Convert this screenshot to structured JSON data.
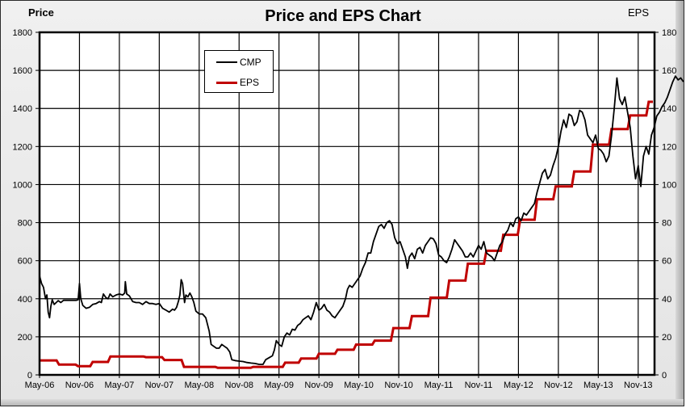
{
  "chart_data": {
    "type": "line",
    "title": "Price and EPS Chart",
    "xlabel": "",
    "ylabel": "Price",
    "y2label": "EPS",
    "ylim": [
      0,
      1800
    ],
    "y2lim": [
      0,
      180
    ],
    "yticks": [
      0,
      200,
      400,
      600,
      800,
      1000,
      1200,
      1400,
      1600,
      1800
    ],
    "y2ticks": [
      0,
      20,
      40,
      60,
      80,
      100,
      120,
      140,
      160,
      180
    ],
    "categories": [
      "May-06",
      "Nov-06",
      "May-07",
      "Nov-07",
      "May-08",
      "Nov-08",
      "May-09",
      "Nov-09",
      "May-10",
      "Nov-10",
      "May-11",
      "Nov-11",
      "May-12",
      "Nov-12",
      "May-13",
      "Nov-13"
    ],
    "grid": true,
    "legend_position": "upper-left-inside",
    "x_unit": "months since May-06",
    "series": [
      {
        "name": "CMP",
        "axis": "left",
        "color": "#000000",
        "points": [
          [
            0,
            520
          ],
          [
            0.3,
            480
          ],
          [
            0.6,
            460
          ],
          [
            0.9,
            400
          ],
          [
            1.1,
            420
          ],
          [
            1.3,
            330
          ],
          [
            1.5,
            300
          ],
          [
            1.7,
            360
          ],
          [
            1.9,
            395
          ],
          [
            2.2,
            370
          ],
          [
            2.5,
            380
          ],
          [
            2.8,
            390
          ],
          [
            3.2,
            380
          ],
          [
            3.6,
            392
          ],
          [
            4.0,
            392
          ],
          [
            4.5,
            392
          ],
          [
            5.0,
            392
          ],
          [
            5.5,
            392
          ],
          [
            5.8,
            395
          ],
          [
            6.0,
            480
          ],
          [
            6.2,
            400
          ],
          [
            6.5,
            365
          ],
          [
            7.0,
            350
          ],
          [
            7.5,
            355
          ],
          [
            8.0,
            370
          ],
          [
            8.5,
            375
          ],
          [
            9.0,
            385
          ],
          [
            9.3,
            380
          ],
          [
            9.6,
            425
          ],
          [
            10.0,
            405
          ],
          [
            10.3,
            400
          ],
          [
            10.6,
            425
          ],
          [
            11.0,
            410
          ],
          [
            11.5,
            420
          ],
          [
            12.0,
            425
          ],
          [
            12.5,
            420
          ],
          [
            12.8,
            430
          ],
          [
            12.9,
            490
          ],
          [
            13.1,
            425
          ],
          [
            13.5,
            415
          ],
          [
            14.0,
            385
          ],
          [
            14.5,
            380
          ],
          [
            15.0,
            380
          ],
          [
            15.5,
            370
          ],
          [
            16.0,
            385
          ],
          [
            16.5,
            375
          ],
          [
            17.0,
            375
          ],
          [
            17.5,
            370
          ],
          [
            18.0,
            375
          ],
          [
            18.5,
            350
          ],
          [
            19.0,
            340
          ],
          [
            19.5,
            330
          ],
          [
            20.0,
            345
          ],
          [
            20.3,
            340
          ],
          [
            20.6,
            355
          ],
          [
            20.9,
            390
          ],
          [
            21.1,
            420
          ],
          [
            21.3,
            500
          ],
          [
            21.5,
            480
          ],
          [
            21.8,
            380
          ],
          [
            22.0,
            420
          ],
          [
            22.3,
            410
          ],
          [
            22.6,
            430
          ],
          [
            22.9,
            410
          ],
          [
            23.2,
            380
          ],
          [
            23.5,
            335
          ],
          [
            24.0,
            320
          ],
          [
            24.5,
            320
          ],
          [
            25.0,
            300
          ],
          [
            25.5,
            230
          ],
          [
            25.8,
            160
          ],
          [
            26.2,
            150
          ],
          [
            26.6,
            140
          ],
          [
            27.0,
            140
          ],
          [
            27.4,
            160
          ],
          [
            27.8,
            150
          ],
          [
            28.2,
            140
          ],
          [
            28.6,
            120
          ],
          [
            28.9,
            80
          ],
          [
            29.4,
            75
          ],
          [
            30.0,
            72
          ],
          [
            30.6,
            70
          ],
          [
            31.2,
            65
          ],
          [
            31.8,
            62
          ],
          [
            32.4,
            60
          ],
          [
            33.0,
            55
          ],
          [
            33.6,
            55
          ],
          [
            34.0,
            80
          ],
          [
            34.5,
            90
          ],
          [
            35.0,
            100
          ],
          [
            35.3,
            130
          ],
          [
            35.6,
            180
          ],
          [
            36.0,
            160
          ],
          [
            36.4,
            150
          ],
          [
            36.8,
            200
          ],
          [
            37.2,
            220
          ],
          [
            37.6,
            210
          ],
          [
            38.0,
            240
          ],
          [
            38.4,
            235
          ],
          [
            38.8,
            260
          ],
          [
            39.2,
            270
          ],
          [
            39.6,
            290
          ],
          [
            40.0,
            300
          ],
          [
            40.4,
            310
          ],
          [
            40.8,
            290
          ],
          [
            41.2,
            330
          ],
          [
            41.6,
            380
          ],
          [
            42.0,
            340
          ],
          [
            42.4,
            350
          ],
          [
            42.8,
            370
          ],
          [
            43.2,
            340
          ],
          [
            43.6,
            330
          ],
          [
            44.0,
            310
          ],
          [
            44.4,
            300
          ],
          [
            44.8,
            320
          ],
          [
            45.2,
            340
          ],
          [
            45.6,
            360
          ],
          [
            46.0,
            400
          ],
          [
            46.3,
            450
          ],
          [
            46.6,
            470
          ],
          [
            47.0,
            460
          ],
          [
            47.4,
            480
          ],
          [
            47.8,
            500
          ],
          [
            48.2,
            520
          ],
          [
            48.6,
            560
          ],
          [
            49.0,
            590
          ],
          [
            49.4,
            640
          ],
          [
            49.8,
            640
          ],
          [
            50.2,
            700
          ],
          [
            50.6,
            740
          ],
          [
            51.0,
            780
          ],
          [
            51.4,
            790
          ],
          [
            51.8,
            770
          ],
          [
            52.2,
            800
          ],
          [
            52.6,
            810
          ],
          [
            53.0,
            790
          ],
          [
            53.4,
            720
          ],
          [
            53.8,
            690
          ],
          [
            54.2,
            700
          ],
          [
            54.6,
            660
          ],
          [
            55.0,
            620
          ],
          [
            55.3,
            560
          ],
          [
            55.6,
            620
          ],
          [
            56.0,
            640
          ],
          [
            56.4,
            610
          ],
          [
            56.8,
            660
          ],
          [
            57.2,
            670
          ],
          [
            57.6,
            640
          ],
          [
            58.0,
            680
          ],
          [
            58.4,
            700
          ],
          [
            58.8,
            720
          ],
          [
            59.2,
            715
          ],
          [
            59.6,
            690
          ],
          [
            60.0,
            630
          ],
          [
            60.4,
            620
          ],
          [
            60.8,
            600
          ],
          [
            61.2,
            590
          ],
          [
            61.6,
            620
          ],
          [
            62.0,
            660
          ],
          [
            62.4,
            710
          ],
          [
            62.8,
            690
          ],
          [
            63.2,
            670
          ],
          [
            63.6,
            650
          ],
          [
            64.0,
            620
          ],
          [
            64.4,
            620
          ],
          [
            64.8,
            640
          ],
          [
            65.2,
            620
          ],
          [
            65.6,
            650
          ],
          [
            66.0,
            680
          ],
          [
            66.4,
            660
          ],
          [
            66.8,
            700
          ],
          [
            67.2,
            640
          ],
          [
            67.6,
            630
          ],
          [
            68.0,
            620
          ],
          [
            68.4,
            600
          ],
          [
            68.8,
            640
          ],
          [
            69.2,
            680
          ],
          [
            69.6,
            700
          ],
          [
            70.0,
            740
          ],
          [
            70.4,
            760
          ],
          [
            70.8,
            800
          ],
          [
            71.2,
            780
          ],
          [
            71.6,
            820
          ],
          [
            72.0,
            830
          ],
          [
            72.4,
            810
          ],
          [
            72.8,
            850
          ],
          [
            73.2,
            840
          ],
          [
            73.6,
            860
          ],
          [
            74.0,
            880
          ],
          [
            74.4,
            900
          ],
          [
            74.8,
            960
          ],
          [
            75.2,
            1010
          ],
          [
            75.6,
            1060
          ],
          [
            76.0,
            1080
          ],
          [
            76.4,
            1030
          ],
          [
            76.8,
            1050
          ],
          [
            77.2,
            1100
          ],
          [
            77.6,
            1140
          ],
          [
            78.0,
            1200
          ],
          [
            78.4,
            1280
          ],
          [
            78.8,
            1340
          ],
          [
            79.2,
            1300
          ],
          [
            79.6,
            1370
          ],
          [
            80.0,
            1360
          ],
          [
            80.4,
            1310
          ],
          [
            80.8,
            1330
          ],
          [
            81.2,
            1390
          ],
          [
            81.6,
            1380
          ],
          [
            82.0,
            1340
          ],
          [
            82.4,
            1260
          ],
          [
            82.8,
            1240
          ],
          [
            83.2,
            1220
          ],
          [
            83.6,
            1260
          ],
          [
            84.0,
            1190
          ],
          [
            84.4,
            1180
          ],
          [
            84.8,
            1160
          ],
          [
            85.2,
            1120
          ],
          [
            85.6,
            1150
          ],
          [
            86.0,
            1260
          ],
          [
            86.4,
            1400
          ],
          [
            86.8,
            1560
          ],
          [
            87.2,
            1450
          ],
          [
            87.6,
            1420
          ],
          [
            88.0,
            1460
          ],
          [
            88.4,
            1380
          ],
          [
            88.8,
            1300
          ],
          [
            89.2,
            1150
          ],
          [
            89.6,
            1030
          ],
          [
            90.0,
            1100
          ],
          [
            90.4,
            990
          ],
          [
            90.8,
            1150
          ],
          [
            91.2,
            1200
          ],
          [
            91.6,
            1160
          ],
          [
            92.0,
            1260
          ],
          [
            92.4,
            1300
          ],
          [
            92.8,
            1360
          ],
          [
            93.2,
            1380
          ],
          [
            93.6,
            1410
          ],
          [
            94.0,
            1430
          ],
          [
            94.4,
            1460
          ],
          [
            94.8,
            1500
          ],
          [
            95.2,
            1540
          ],
          [
            95.6,
            1570
          ],
          [
            96.0,
            1550
          ],
          [
            96.4,
            1560
          ],
          [
            96.8,
            1540
          ]
        ]
      },
      {
        "name": "EPS",
        "axis": "right",
        "color": "#c00000",
        "steps": [
          [
            0,
            7.6
          ],
          [
            4.2,
            5.4
          ],
          [
            8.5,
            4.6
          ],
          [
            11.8,
            6.8
          ],
          [
            15.8,
            9.7
          ],
          [
            23.8,
            9.3
          ],
          [
            28.0,
            7.8
          ],
          [
            32.4,
            4.2
          ],
          [
            40.0,
            3.7
          ],
          [
            48.0,
            4.2
          ],
          [
            55.2,
            6.4
          ],
          [
            58.8,
            8.6
          ],
          [
            62.8,
            11.1
          ],
          [
            67.0,
            13.2
          ],
          [
            71.2,
            15.9
          ],
          [
            75.4,
            18.0
          ],
          [
            79.6,
            24.6
          ],
          [
            83.8,
            30.9
          ],
          [
            88.0,
            40.6
          ],
          [
            92.2,
            49.6
          ],
          [
            96.4,
            58.4
          ],
          [
            100.6,
            65.2
          ],
          [
            104.4,
            73.6
          ],
          [
            108.2,
            81.5
          ],
          [
            112.0,
            92.3
          ],
          [
            116.2,
            99.0
          ],
          [
            120.4,
            106.9
          ],
          [
            124.6,
            121.0
          ],
          [
            128.8,
            129.2
          ],
          [
            133.0,
            136.3
          ],
          [
            137.2,
            143.5
          ]
        ],
        "x_scale_note": "step x in half-grid units (each 6-month interval = 9 units)"
      }
    ]
  },
  "header": {
    "title": "Price and EPS Chart",
    "left_axis_title": "Price",
    "right_axis_title": "EPS"
  },
  "legend": {
    "items": [
      {
        "label": "CMP",
        "color": "#000000"
      },
      {
        "label": "EPS",
        "color": "#c00000"
      }
    ]
  }
}
